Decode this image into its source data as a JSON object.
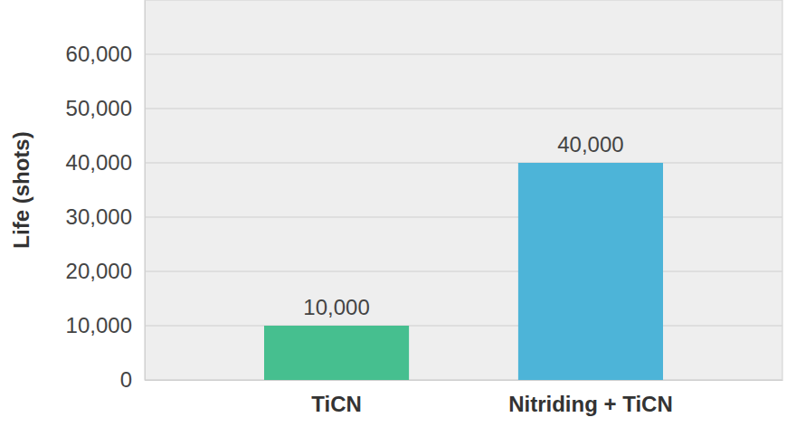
{
  "chart_data": {
    "type": "bar",
    "y_label": "Life (shots)",
    "categories": [
      "TiCN",
      "Nitriding + TiCN"
    ],
    "values": [
      10000,
      40000
    ],
    "value_labels": [
      "10,000",
      "40,000"
    ],
    "colors": [
      "#46bf8f",
      "#4db4d8"
    ],
    "ylim": [
      0,
      70000
    ],
    "yticks": [
      0,
      {
        "value": 10000,
        "label": "10,000"
      },
      {
        "value": 20000,
        "label": "20,000"
      },
      {
        "value": 30000,
        "label": "30,000"
      },
      {
        "value": 40000,
        "label": "40,000"
      },
      {
        "value": 50000,
        "label": "50,000"
      },
      {
        "value": 60000,
        "label": "60,000"
      }
    ],
    "grid": true,
    "data_labels": true
  }
}
